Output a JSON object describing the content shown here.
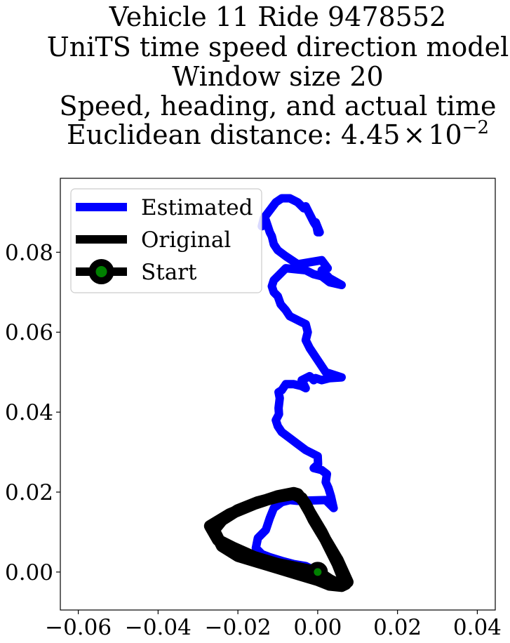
{
  "chart_data": {
    "type": "line",
    "title_lines": [
      "Vehicle 11 Ride 9478552",
      "UniTS time speed direction model",
      "Window size 20",
      "Speed, heading, and actual time"
    ],
    "title_distance_prefix": "Euclidean distance: ",
    "title_distance_mantissa": "4.45",
    "title_distance_times": "×",
    "title_distance_base": "10",
    "title_distance_exponent": "−2",
    "xlim": [
      -0.0645,
      0.0445
    ],
    "ylim": [
      -0.0095,
      0.0985
    ],
    "x_ticks": [
      {
        "value": -0.06,
        "label": "−0.06"
      },
      {
        "value": -0.04,
        "label": "−0.04"
      },
      {
        "value": -0.02,
        "label": "−0.02"
      },
      {
        "value": 0.0,
        "label": "0.00"
      },
      {
        "value": 0.02,
        "label": "0.02"
      },
      {
        "value": 0.04,
        "label": "0.04"
      }
    ],
    "y_ticks": [
      {
        "value": 0.0,
        "label": "0.00"
      },
      {
        "value": 0.02,
        "label": "0.02"
      },
      {
        "value": 0.04,
        "label": "0.04"
      },
      {
        "value": 0.06,
        "label": "0.06"
      },
      {
        "value": 0.08,
        "label": "0.08"
      }
    ],
    "grid": false,
    "legend_position": "top-left",
    "series": [
      {
        "name": "Estimated",
        "color": "#0000ff",
        "x": [
          0.0,
          -0.003,
          -0.006,
          -0.009,
          -0.012,
          -0.014,
          -0.0155,
          -0.015,
          -0.013,
          -0.012,
          -0.011,
          -0.009,
          -0.007,
          -0.005,
          0.002,
          0.004,
          0.0033,
          0.0027,
          0.002,
          0.0023,
          0.001,
          -0.001,
          0.0001,
          0.0,
          -0.003,
          -0.005,
          -0.007,
          -0.009,
          -0.01,
          -0.0105,
          -0.0097,
          -0.0098,
          -0.0095,
          -0.0098,
          -0.009,
          -0.008,
          -0.006,
          -0.004,
          -0.003,
          -0.004,
          -0.002,
          -0.001,
          -0.0005,
          0.001,
          0.003,
          0.006,
          0.002,
          0.0,
          -0.002,
          -0.003,
          -0.0025,
          -0.003,
          -0.004,
          -0.006,
          -0.007,
          -0.008,
          -0.0093,
          -0.01,
          -0.011,
          -0.0115,
          -0.011,
          -0.0095,
          -0.008,
          -0.003,
          -0.001,
          0.001,
          0.003,
          0.006,
          0.003,
          0.001,
          0.0025,
          0.001,
          -0.002,
          -0.005,
          -0.008,
          -0.01,
          -0.011,
          -0.0115,
          -0.012,
          -0.0125,
          -0.013,
          -0.0135,
          -0.014,
          -0.0135,
          -0.012,
          -0.0105,
          -0.009,
          -0.007,
          -0.005,
          -0.0035,
          -0.003,
          -0.002,
          -0.001,
          0.0,
          0.0005,
          -0.0005,
          0.0
        ],
        "y": [
          0.0,
          0.0015,
          0.002,
          0.0028,
          0.0037,
          0.0045,
          0.006,
          0.0085,
          0.0105,
          0.0135,
          0.016,
          0.0175,
          0.018,
          0.0178,
          0.018,
          0.016,
          0.019,
          0.021,
          0.0225,
          0.0245,
          0.0255,
          0.026,
          0.027,
          0.029,
          0.0305,
          0.032,
          0.0335,
          0.035,
          0.0365,
          0.038,
          0.0395,
          0.041,
          0.0435,
          0.045,
          0.0455,
          0.047,
          0.047,
          0.0465,
          0.046,
          0.048,
          0.049,
          0.048,
          0.0485,
          0.048,
          0.0485,
          0.0487,
          0.05,
          0.053,
          0.056,
          0.058,
          0.06,
          0.062,
          0.0625,
          0.0635,
          0.064,
          0.0655,
          0.067,
          0.069,
          0.07,
          0.0715,
          0.073,
          0.0745,
          0.076,
          0.0755,
          0.0745,
          0.074,
          0.0725,
          0.0718,
          0.0735,
          0.0755,
          0.076,
          0.078,
          0.0775,
          0.077,
          0.079,
          0.0805,
          0.082,
          0.084,
          0.085,
          0.0865,
          0.088,
          0.0875,
          0.0865,
          0.0885,
          0.0905,
          0.0925,
          0.0935,
          0.0935,
          0.0925,
          0.091,
          0.0915,
          0.0895,
          0.0875,
          0.086,
          0.085,
          0.0875,
          0.085
        ]
      },
      {
        "name": "Original",
        "color": "#000000",
        "x": [
          0.0,
          -0.004,
          -0.01,
          -0.016,
          -0.021,
          -0.025,
          -0.027,
          -0.022,
          -0.016,
          -0.01,
          -0.006,
          -0.005,
          -0.003,
          -0.001,
          0.002,
          0.005,
          0.0075,
          0.006,
          0.003,
          0.0,
          -0.005,
          -0.01,
          -0.015,
          -0.02,
          -0.024,
          -0.026,
          -0.024,
          -0.02,
          -0.015,
          -0.01,
          -0.006,
          -0.004,
          -0.002,
          0.001,
          0.003,
          0.005,
          0.006,
          0.007,
          0.006,
          0.003,
          0.0
        ],
        "y": [
          0.0,
          0.0008,
          0.002,
          0.0038,
          0.006,
          0.008,
          0.0115,
          0.0145,
          0.017,
          0.019,
          0.0198,
          0.0195,
          0.017,
          0.013,
          0.008,
          0.003,
          -0.0025,
          -0.0035,
          -0.0032,
          -0.002,
          -0.0005,
          0.001,
          0.0025,
          0.004,
          0.0065,
          0.0105,
          0.013,
          0.0155,
          0.0175,
          0.0188,
          0.0195,
          0.0185,
          0.015,
          0.01,
          0.006,
          0.002,
          -0.0005,
          -0.003,
          -0.0035,
          -0.002,
          0.0
        ]
      }
    ],
    "start_point": {
      "name": "Start",
      "x": 0.0,
      "y": 0.0,
      "marker_face_color": "#008000",
      "marker_edge_color": "#000000"
    }
  }
}
